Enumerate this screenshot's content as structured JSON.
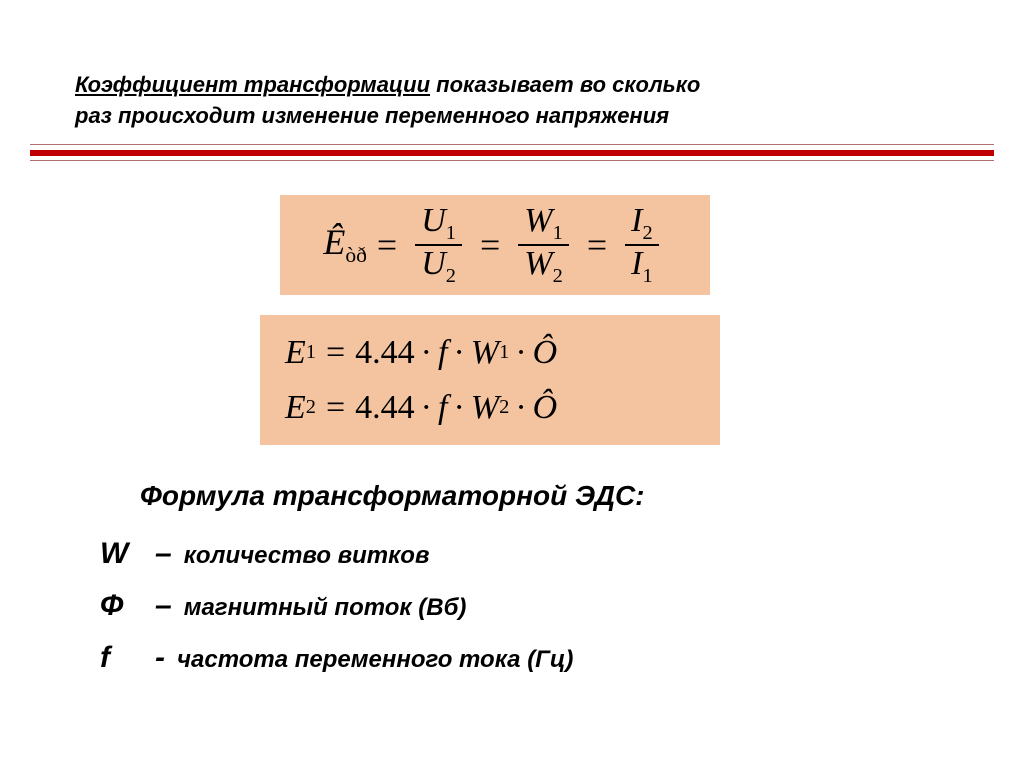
{
  "header": {
    "term": "Коэффициент трансформации",
    "rest1": " показывает во сколько",
    "line2": "раз происходит изменение переменного напряжения"
  },
  "formulas": {
    "ratio": {
      "lhs_letter": "Ê",
      "lhs_sub": "òð",
      "eq": "=",
      "f1_num": "U",
      "f1_num_sub": "1",
      "f1_den": "U",
      "f1_den_sub": "2",
      "f2_num": "W",
      "f2_num_sub": "1",
      "f2_den": "W",
      "f2_den_sub": "2",
      "f3_num": "I",
      "f3_num_sub": "2",
      "f3_den": "I",
      "f3_den_sub": "1"
    },
    "emf": {
      "e1_lhs": "E",
      "e1_sub": "1",
      "e2_lhs": "E",
      "e2_sub": "2",
      "const": "4.44",
      "f": "f",
      "w": "W",
      "w1_sub": "1",
      "w2_sub": "2",
      "phi": "Ô",
      "dot": "·",
      "eq": "="
    }
  },
  "defs": {
    "title": "Формула трансформаторной ЭДС:",
    "rows": [
      {
        "sym": "W",
        "dash": "–",
        "text": "количество витков"
      },
      {
        "sym": "Ф",
        "dash": "–",
        "text": "магнитный поток (Вб)"
      },
      {
        "sym": "f",
        "dash": "-",
        "text": "частота переменного тока (Гц)"
      }
    ]
  },
  "style": {
    "bg": "#ffffff",
    "formula_bg": "#f4c4a0",
    "rule_color": "#c00000",
    "text_color": "#000000",
    "header_fontsize": 22,
    "math_fontsize": 36,
    "def_title_fontsize": 28,
    "def_sym_fontsize": 30,
    "def_text_fontsize": 24
  }
}
